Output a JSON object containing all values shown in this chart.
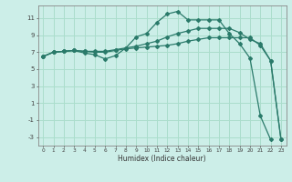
{
  "title": "",
  "xlabel": "Humidex (Indice chaleur)",
  "bg_color": "#cceee8",
  "grid_color": "#aaddcc",
  "line_color": "#2a7a6a",
  "xlim": [
    -0.5,
    23.5
  ],
  "ylim": [
    -4.0,
    12.5
  ],
  "xticks": [
    0,
    1,
    2,
    3,
    4,
    5,
    6,
    7,
    8,
    9,
    10,
    11,
    12,
    13,
    14,
    15,
    16,
    17,
    18,
    19,
    20,
    21,
    22,
    23
  ],
  "yticks": [
    -3,
    -1,
    1,
    3,
    5,
    7,
    9,
    11
  ],
  "line1_x": [
    0,
    1,
    2,
    3,
    4,
    5,
    6,
    7,
    8,
    9,
    10,
    11,
    12,
    13,
    14,
    15,
    16,
    17,
    18,
    19,
    20,
    21,
    22,
    23
  ],
  "line1_y": [
    6.5,
    7.0,
    7.1,
    7.2,
    6.9,
    6.7,
    6.2,
    6.6,
    7.5,
    8.8,
    9.2,
    10.5,
    11.5,
    11.8,
    10.8,
    10.8,
    10.8,
    10.8,
    9.2,
    8.0,
    6.3,
    -0.5,
    -3.3,
    null
  ],
  "line2_x": [
    0,
    1,
    2,
    3,
    4,
    5,
    6,
    7,
    8,
    9,
    10,
    11,
    12,
    13,
    14,
    15,
    16,
    17,
    18,
    19,
    20,
    21,
    22,
    23
  ],
  "line2_y": [
    6.5,
    7.0,
    7.1,
    7.2,
    7.1,
    7.0,
    7.0,
    7.2,
    7.4,
    7.5,
    7.6,
    7.7,
    7.8,
    8.0,
    8.3,
    8.5,
    8.7,
    8.7,
    8.7,
    8.7,
    8.7,
    7.8,
    6.0,
    -3.3
  ],
  "line3_x": [
    0,
    1,
    2,
    3,
    4,
    5,
    6,
    7,
    8,
    9,
    10,
    11,
    12,
    13,
    14,
    15,
    16,
    17,
    18,
    19,
    20,
    21,
    22,
    23
  ],
  "line3_y": [
    6.5,
    7.0,
    7.1,
    7.2,
    7.1,
    7.1,
    7.1,
    7.3,
    7.5,
    7.7,
    8.0,
    8.3,
    8.8,
    9.2,
    9.5,
    9.8,
    9.8,
    9.8,
    9.8,
    9.3,
    8.5,
    8.0,
    6.0,
    -3.3
  ],
  "marker": "D",
  "marker_size": 2.0,
  "line_width": 0.9
}
